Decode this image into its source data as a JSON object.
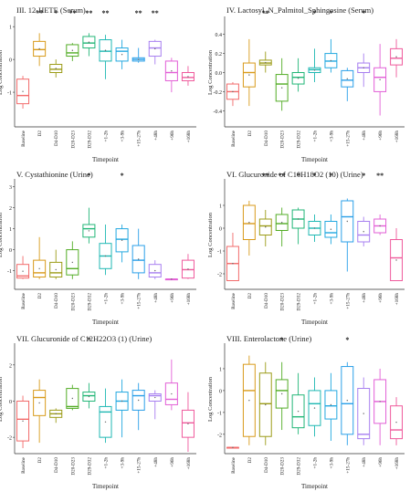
{
  "categories": [
    "Baseline",
    "D2",
    "D4-D10",
    "D20-D23",
    "D29-D32",
    "+1-2h",
    "+3-9h",
    "+15-27h",
    "+48h",
    "+96h",
    "+168h"
  ],
  "colors": [
    "#f26b6b",
    "#d89a1a",
    "#9c9c18",
    "#52ac25",
    "#22b677",
    "#1fb8b3",
    "#22a8e0",
    "#2a9fe8",
    "#a77ff0",
    "#e25fd6",
    "#ef5a9c"
  ],
  "chart_data": [
    {
      "type": "box",
      "title": "III. 12-HETE (Serum)",
      "xlabel": "Timepoint",
      "ylabel": "Log Concentration",
      "ylim": [
        -2.0,
        1.2
      ],
      "yticks": [
        -1,
        0,
        1
      ],
      "ytick_labels": [
        "-1",
        "0",
        "1"
      ],
      "significance": [
        "",
        "**",
        "*",
        "**",
        "**",
        "**",
        "",
        "**",
        "**",
        "",
        ""
      ],
      "boxes": [
        [
          -1.5,
          -1.35,
          -1.1,
          -0.6,
          -0.5
        ],
        [
          -0.2,
          0.1,
          0.3,
          0.55,
          0.8
        ],
        [
          -0.55,
          -0.4,
          -0.3,
          -0.15,
          0.0
        ],
        [
          -0.05,
          0.1,
          0.2,
          0.45,
          0.5
        ],
        [
          0.1,
          0.35,
          0.5,
          0.7,
          0.8
        ],
        [
          -0.6,
          -0.05,
          0.25,
          0.6,
          0.75
        ],
        [
          -0.3,
          -0.05,
          0.25,
          0.35,
          0.6
        ],
        [
          -0.1,
          -0.05,
          0.0,
          0.05,
          0.35
        ],
        [
          -0.15,
          0.1,
          0.35,
          0.55,
          0.6
        ],
        [
          -1.0,
          -0.65,
          -0.4,
          -0.05,
          0.05
        ],
        [
          -0.8,
          -0.65,
          -0.55,
          -0.4,
          -0.2
        ]
      ]
    },
    {
      "type": "box",
      "title": "IV. Lactosyl_N_Palmitol_Sphingosine (Serum)",
      "xlabel": "Timepoint",
      "ylabel": "Log Concentration",
      "ylim": [
        -0.55,
        0.55
      ],
      "yticks": [
        -0.4,
        -0.2,
        0.0,
        0.2,
        0.4
      ],
      "ytick_labels": [
        "-0.4",
        "-0.2",
        "0.0",
        "0.2",
        "0.4"
      ],
      "significance": [
        "",
        "",
        "**",
        "",
        "",
        "*",
        "*",
        "",
        "*",
        "",
        ""
      ],
      "boxes": [
        [
          -0.35,
          -0.28,
          -0.2,
          -0.12,
          -0.1
        ],
        [
          -0.35,
          -0.15,
          0.0,
          0.1,
          0.35
        ],
        [
          0.0,
          0.08,
          0.1,
          0.13,
          0.22
        ],
        [
          -0.4,
          -0.3,
          -0.12,
          -0.02,
          0.15
        ],
        [
          -0.2,
          -0.12,
          -0.05,
          0.0,
          0.15
        ],
        [
          -0.1,
          0.0,
          0.03,
          0.05,
          0.25
        ],
        [
          0.0,
          0.05,
          0.12,
          0.2,
          0.35
        ],
        [
          -0.3,
          -0.15,
          -0.08,
          0.02,
          0.05
        ],
        [
          -0.15,
          0.0,
          0.05,
          0.1,
          0.2
        ],
        [
          -0.45,
          -0.2,
          -0.05,
          0.05,
          0.3
        ],
        [
          -0.05,
          0.08,
          0.15,
          0.25,
          0.35
        ]
      ]
    },
    {
      "type": "box",
      "title": "V. Cystathionine (Urine)",
      "xlabel": "Timepoint",
      "ylabel": "Log Concentration",
      "ylim": [
        -1.8,
        3.2
      ],
      "yticks": [
        -1,
        0,
        1,
        2,
        3
      ],
      "ytick_labels": [
        "-1",
        "0",
        "1",
        "2",
        "3"
      ],
      "significance": [
        "",
        "",
        "",
        "",
        "*",
        "",
        "*",
        "",
        "",
        "",
        ""
      ],
      "boxes": [
        [
          -1.4,
          -1.35,
          -1.25,
          -0.7,
          -0.3
        ],
        [
          -1.4,
          -1.3,
          -1.1,
          -0.5,
          0.6
        ],
        [
          -1.4,
          -1.3,
          -1.1,
          -0.6,
          0.0
        ],
        [
          -1.4,
          -1.2,
          -0.9,
          0.0,
          0.4
        ],
        [
          0.3,
          0.6,
          1.0,
          1.2,
          2.0
        ],
        [
          -1.2,
          -0.9,
          -0.3,
          0.3,
          1.2
        ],
        [
          -0.6,
          -0.1,
          0.5,
          1.0,
          1.2
        ],
        [
          -1.4,
          -1.1,
          -0.5,
          0.2,
          1.0
        ],
        [
          -1.4,
          -1.3,
          -1.1,
          -0.7,
          -0.5
        ],
        [
          -1.4,
          -1.4,
          -1.4,
          -1.4,
          -1.4
        ],
        [
          -1.4,
          -1.35,
          -0.95,
          -0.5,
          -0.2
        ]
      ]
    },
    {
      "type": "box",
      "title": "VI. Glucuronide of C10H18O2 (10) (Urine)",
      "xlabel": "Timepoint",
      "ylabel": "Log Concentration",
      "ylim": [
        -2.6,
        2.0
      ],
      "yticks": [
        -2,
        -1,
        0,
        1
      ],
      "ytick_labels": [
        "-2",
        "-1",
        "0",
        "1"
      ],
      "significance": [
        "",
        "",
        "**",
        "**",
        "*",
        "*",
        "*",
        "",
        "*",
        "**",
        ""
      ],
      "boxes": [
        [
          -2.3,
          -2.3,
          -1.55,
          -0.8,
          -0.2
        ],
        [
          -1.2,
          -0.5,
          0.2,
          1.0,
          1.2
        ],
        [
          -0.8,
          -0.3,
          0.1,
          0.4,
          0.8
        ],
        [
          -0.8,
          -0.1,
          0.2,
          0.6,
          0.9
        ],
        [
          -0.7,
          0.0,
          0.4,
          0.8,
          0.9
        ],
        [
          -0.6,
          -0.3,
          0.0,
          0.3,
          0.6
        ],
        [
          -0.7,
          -0.4,
          -0.2,
          0.3,
          0.6
        ],
        [
          -1.9,
          -0.6,
          0.5,
          1.2,
          1.3
        ],
        [
          -0.8,
          -0.6,
          -0.3,
          0.3,
          0.5
        ],
        [
          -0.3,
          -0.2,
          0.1,
          0.4,
          0.6
        ],
        [
          -2.3,
          -2.3,
          -1.3,
          -0.5,
          0.0
        ]
      ]
    },
    {
      "type": "box",
      "title": "VII. Glucuronide of C12H22O3 (1) (Urine)",
      "xlabel": "Timepoint",
      "ylabel": "Log Concentration",
      "ylim": [
        -2.8,
        3.0
      ],
      "yticks": [
        -2,
        0,
        2
      ],
      "ytick_labels": [
        "-2",
        "0",
        "2"
      ],
      "significance": [
        "",
        "",
        "",
        "",
        "*",
        "",
        "",
        "",
        "",
        "",
        ""
      ],
      "boxes": [
        [
          -2.6,
          -2.2,
          -1.0,
          0.0,
          0.3
        ],
        [
          -2.3,
          -0.8,
          0.2,
          0.6,
          1.2
        ],
        [
          -1.2,
          -0.9,
          -0.7,
          -0.5,
          -0.4
        ],
        [
          -0.5,
          -0.4,
          -0.3,
          0.7,
          0.9
        ],
        [
          -0.4,
          0.0,
          0.3,
          0.5,
          1.0
        ],
        [
          -2.3,
          -2.0,
          -0.6,
          -0.3,
          0.7
        ],
        [
          -2.0,
          -0.5,
          0.0,
          0.5,
          1.2
        ],
        [
          -1.6,
          -0.5,
          0.3,
          0.6,
          1.0
        ],
        [
          -1.0,
          0.0,
          0.3,
          0.4,
          0.6
        ],
        [
          -0.5,
          -0.2,
          0.1,
          1.0,
          2.3
        ],
        [
          -2.8,
          -2.0,
          -1.2,
          -0.5,
          0.5
        ]
      ]
    },
    {
      "type": "box",
      "title": "VIII. Enterolactone (Urine)",
      "xlabel": "Timepoint",
      "ylabel": "Log Concentration",
      "ylim": [
        -2.8,
        2.0
      ],
      "yticks": [
        -2,
        -1,
        0,
        1
      ],
      "ytick_labels": [
        "-2",
        "-1",
        "0",
        "1"
      ],
      "significance": [
        "",
        "",
        "",
        "*",
        "",
        "",
        "",
        "*",
        "",
        "",
        ""
      ],
      "boxes": [
        [
          -2.6,
          -2.6,
          -2.6,
          -2.6,
          -2.6
        ],
        [
          -2.5,
          -2.1,
          0.0,
          1.2,
          1.6
        ],
        [
          -2.5,
          -2.1,
          -0.6,
          0.8,
          1.3
        ],
        [
          -1.8,
          -0.8,
          0.0,
          0.5,
          1.3
        ],
        [
          -2.0,
          -1.7,
          -1.2,
          -0.2,
          0.8
        ],
        [
          -2.1,
          -1.6,
          -0.6,
          0.0,
          0.6
        ],
        [
          -2.3,
          -1.3,
          -0.7,
          0.0,
          0.8
        ],
        [
          -2.5,
          -2.0,
          -0.6,
          1.1,
          1.3
        ],
        [
          -2.5,
          -2.2,
          -2.0,
          0.1,
          0.6
        ],
        [
          -2.5,
          -1.5,
          -0.5,
          0.5,
          1.0
        ],
        [
          -2.5,
          -2.2,
          -1.8,
          -0.7,
          -0.3
        ]
      ]
    }
  ]
}
